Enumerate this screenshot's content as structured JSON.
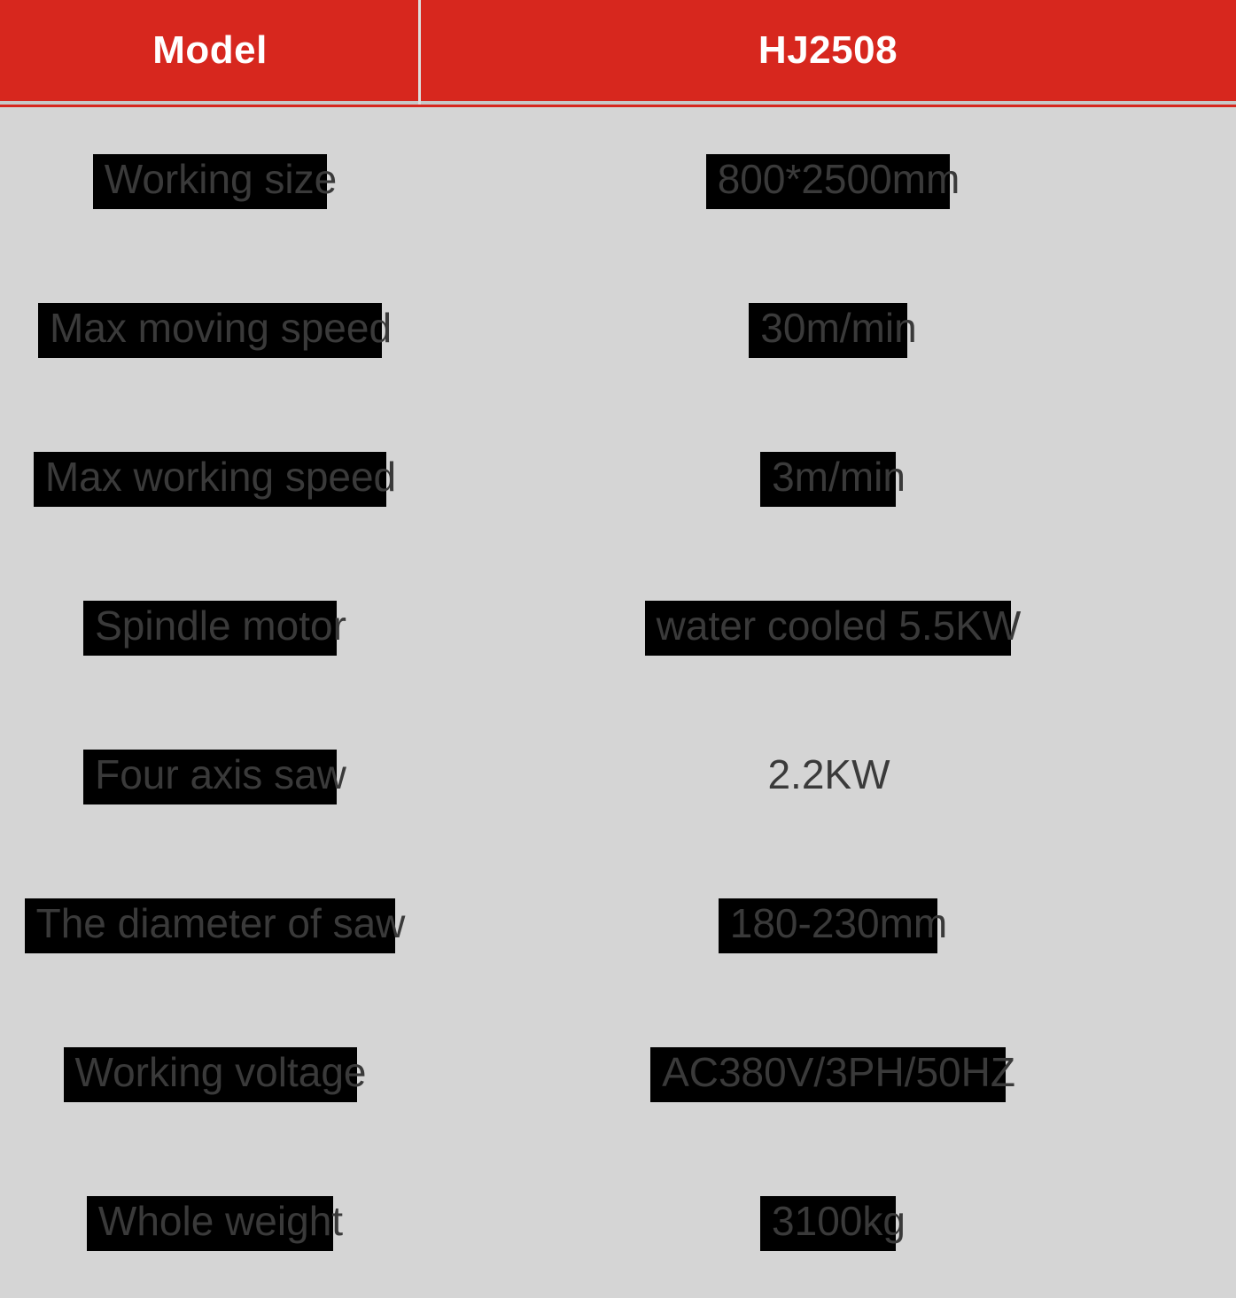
{
  "header": {
    "col1": "Model",
    "col2": "HJ2508"
  },
  "colors": {
    "header_bg": "#d7271e",
    "header_text": "#ffffff",
    "body_bg": "#d5d5d5",
    "text": "#3a3a3a",
    "highlight": "#000000"
  },
  "rows": [
    {
      "label": "Working size",
      "value": "800*2500mm",
      "label_hl": true,
      "value_hl": true
    },
    {
      "label": "Max moving speed",
      "value": "30m/min",
      "label_hl": true,
      "value_hl": true
    },
    {
      "label": "Max working speed",
      "value": "3m/min",
      "label_hl": true,
      "value_hl": true
    },
    {
      "label": "Spindle motor",
      "value": "water cooled 5.5KW",
      "label_hl": true,
      "value_hl": true
    },
    {
      "label": "Four axis saw",
      "value": "2.2KW",
      "label_hl": true,
      "value_hl": false
    },
    {
      "label": "The diameter of saw",
      "value": "180-230mm",
      "label_hl": true,
      "value_hl": true
    },
    {
      "label": "Working voltage",
      "value": "AC380V/3PH/50HZ",
      "label_hl": true,
      "value_hl": true
    },
    {
      "label": "Whole weight",
      "value": "3100kg",
      "label_hl": true,
      "value_hl": true
    }
  ]
}
